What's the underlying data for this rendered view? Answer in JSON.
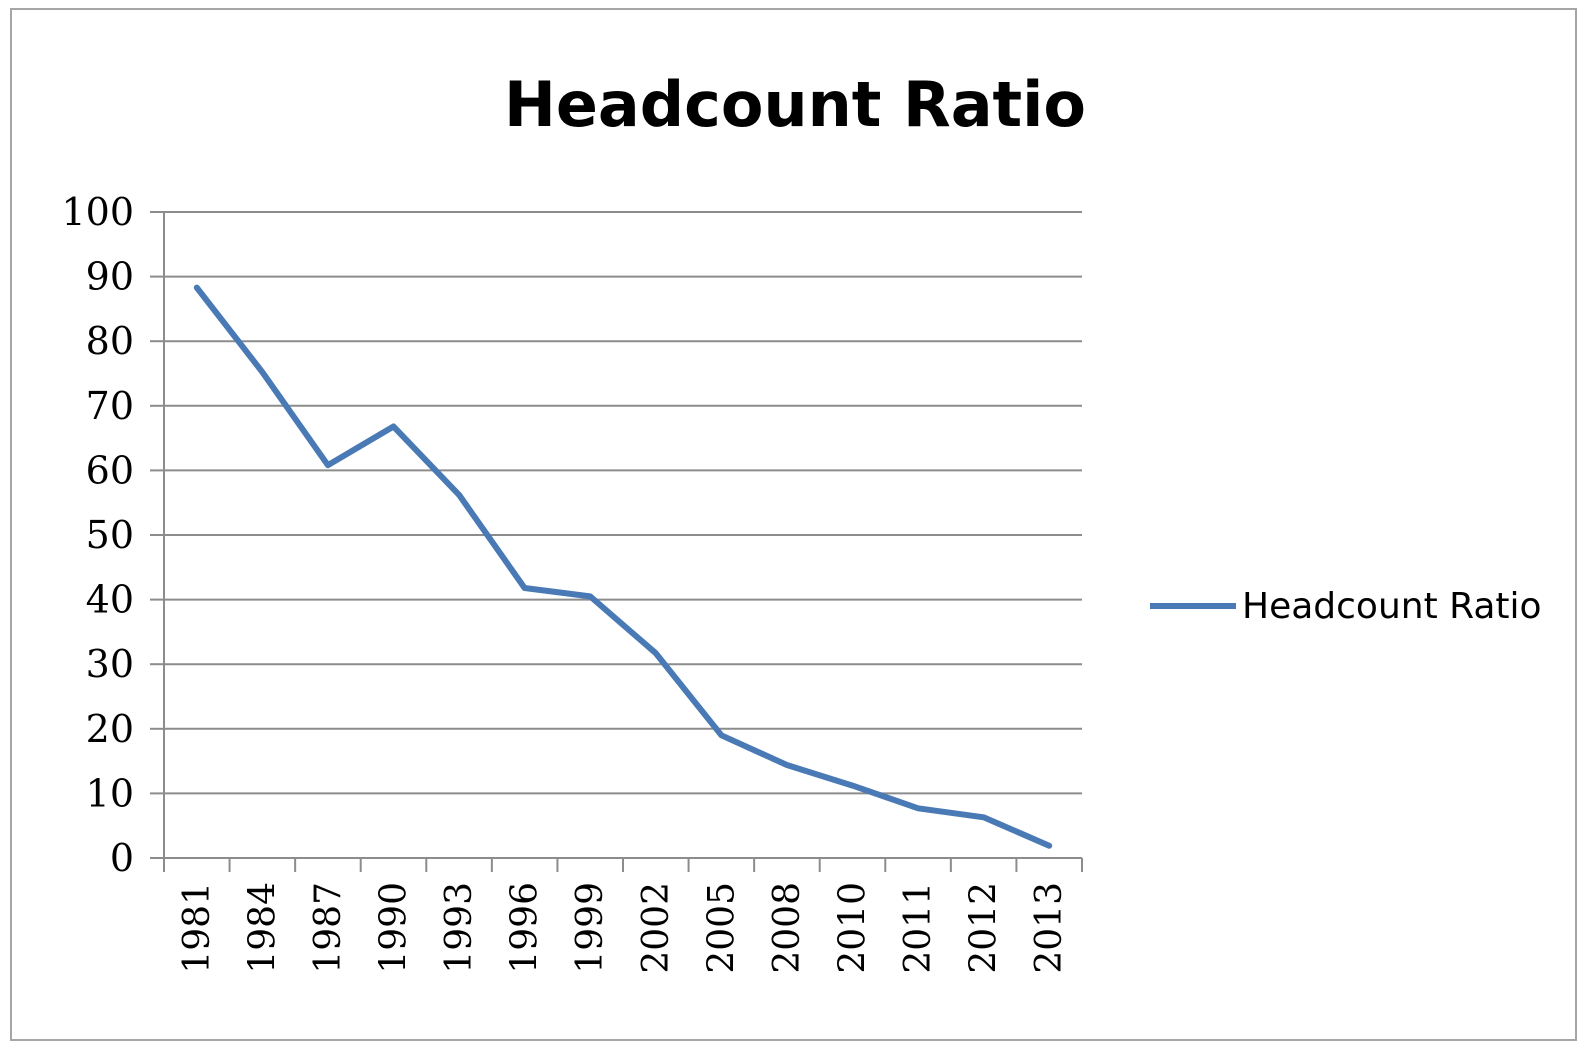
{
  "chart_data": {
    "type": "line",
    "title": "Headcount Ratio",
    "xlabel": "",
    "ylabel": "",
    "categories": [
      "1981",
      "1984",
      "1987",
      "1990",
      "1993",
      "1996",
      "1999",
      "2002",
      "2005",
      "2008",
      "2010",
      "2011",
      "2012",
      "2013"
    ],
    "series": [
      {
        "name": "Headcount Ratio",
        "values": [
          88.3,
          75.2,
          60.8,
          66.8,
          56.2,
          41.8,
          40.5,
          31.7,
          19.0,
          14.4,
          11.2,
          7.7,
          6.3,
          1.9
        ],
        "color": "#4a7ab5"
      }
    ],
    "ylim": [
      0,
      100
    ],
    "yticks": [
      0,
      10,
      20,
      30,
      40,
      50,
      60,
      70,
      80,
      90,
      100
    ],
    "grid": true,
    "legend": "right"
  }
}
